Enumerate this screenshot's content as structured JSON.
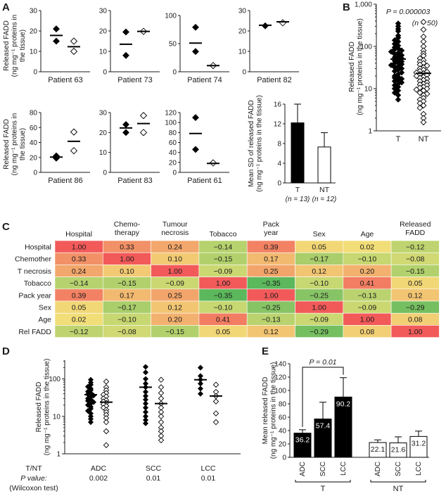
{
  "panels": {
    "A": {
      "letter": "A",
      "ylabel": [
        "Released FADD",
        "(ng mg⁻¹ proteins in",
        "the tissue)"
      ],
      "patients": [
        {
          "label": "Patient 63",
          "ymax": 30,
          "ticks": [
            0,
            10,
            20,
            30
          ],
          "T": [
            21,
            15
          ],
          "NT": [
            10,
            15
          ],
          "meanT": 17.8,
          "meanNT": 12.3
        },
        {
          "label": "Patient 73",
          "ymax": 30,
          "ticks": [
            0,
            10,
            20,
            30
          ],
          "T": [
            19.5,
            8
          ],
          "NT": [
            19.8
          ],
          "meanT": 13.5,
          "meanNT": 19.8
        },
        {
          "label": "Patient 74",
          "ymax": 100,
          "ticks": [
            0,
            50,
            100
          ],
          "T": [
            79,
            36
          ],
          "NT": [
            11
          ],
          "meanT": 51,
          "meanNT": 11
        },
        {
          "label": "Patient 82",
          "ymax": 30,
          "ticks": [
            0,
            10,
            20,
            30
          ],
          "T": [
            22.5
          ],
          "NT": [
            24
          ],
          "meanT": 22.8,
          "meanNT": 24.5
        },
        {
          "label": "Patient 86",
          "ymax": 80,
          "ticks": [
            0,
            20,
            40,
            60,
            80
          ],
          "T": [
            22,
            19
          ],
          "NT": [
            54,
            29
          ],
          "meanT": 20.5,
          "meanNT": 41.5
        },
        {
          "label": "Patient 83",
          "ymax": 30,
          "ticks": [
            0,
            10,
            20,
            30
          ],
          "T": [
            20,
            24
          ],
          "NT": [
            28.5,
            20
          ],
          "meanT": 22.3,
          "meanNT": 24.5
        },
        {
          "label": "Patient 61",
          "ymax": 120,
          "ticks": [
            0,
            20,
            40,
            60,
            80,
            100,
            120
          ],
          "T": [
            110,
            46
          ],
          "NT": [
            19
          ],
          "meanT": 78,
          "meanNT": 18
        }
      ],
      "sd_bar": {
        "ylabel": [
          "Mean SD of released FADD",
          "(ng mg⁻¹ proteins in the tissue)"
        ],
        "ymax": 16,
        "ticks": [
          0,
          4,
          8,
          12,
          16
        ],
        "bars": [
          {
            "label": "T",
            "n": "(n = 13)",
            "value": 12.2,
            "err": 3.8,
            "fill": "#000000"
          },
          {
            "label": "NT",
            "n": "(n = 12)",
            "value": 7.3,
            "err": 2.9,
            "fill": "#ffffff"
          }
        ]
      }
    },
    "B": {
      "letter": "B",
      "ylabel": [
        "Released FADD",
        "(ng mg⁻¹ proteins in the tissue)"
      ],
      "pvalue": "P = 0.000003",
      "n": "(n = 50)",
      "ticks": [
        "1",
        "10",
        "100",
        "1,000"
      ],
      "categories": [
        "T",
        "NT"
      ],
      "meanT": 50,
      "meanNT": 23,
      "T_values": [
        350,
        300,
        260,
        230,
        180,
        160,
        140,
        130,
        115,
        105,
        95,
        90,
        85,
        80,
        75,
        70,
        66,
        62,
        58,
        55,
        52,
        49,
        46,
        44,
        42,
        40,
        38,
        36,
        34,
        32,
        30,
        28,
        26,
        24,
        22,
        20,
        19,
        18,
        17,
        16,
        15,
        14,
        13,
        12,
        11,
        10,
        9,
        8,
        7,
        5.5
      ],
      "NT_values": [
        380,
        250,
        170,
        130,
        100,
        80,
        68,
        60,
        52,
        47,
        43,
        40,
        37,
        35,
        32,
        30,
        28,
        26,
        25,
        24,
        23,
        22,
        21,
        20,
        19,
        18,
        17,
        16,
        15,
        14,
        13,
        12.5,
        12,
        11,
        10.5,
        10,
        9.5,
        9,
        8,
        7.5,
        7,
        6,
        5.5,
        5,
        4.5,
        4,
        3.5,
        2.5,
        2,
        1.6
      ]
    },
    "C": {
      "letter": "C",
      "col_headers": [
        [
          "Hospital"
        ],
        [
          "Chemo-",
          "therapy"
        ],
        [
          "Tumour",
          "necrosis"
        ],
        [
          "Tobacco"
        ],
        [
          "Pack",
          "year"
        ],
        [
          "Sex"
        ],
        [
          "Age"
        ],
        [
          "Released",
          "FADD"
        ]
      ],
      "row_labels": [
        "Hospital",
        "Chemother",
        "T necrosis",
        "Tobacco",
        "Pack year",
        "Sex",
        "Age",
        "Rel FADD"
      ],
      "matrix": [
        [
          1.0,
          0.33,
          0.24,
          -0.14,
          0.39,
          0.05,
          0.02,
          -0.12
        ],
        [
          0.33,
          1.0,
          0.1,
          -0.15,
          0.17,
          -0.17,
          -0.1,
          -0.08
        ],
        [
          0.24,
          0.1,
          1.0,
          -0.09,
          0.25,
          0.12,
          0.2,
          -0.15
        ],
        [
          -0.14,
          -0.15,
          -0.09,
          1.0,
          -0.35,
          -0.1,
          0.41,
          0.05
        ],
        [
          0.39,
          0.17,
          0.25,
          -0.35,
          1.0,
          -0.25,
          -0.13,
          0.12
        ],
        [
          0.05,
          -0.17,
          0.12,
          -0.1,
          -0.25,
          1.0,
          -0.09,
          -0.29
        ],
        [
          0.02,
          -0.1,
          0.2,
          0.41,
          -0.13,
          -0.09,
          1.0,
          0.08
        ],
        [
          -0.12,
          -0.08,
          -0.15,
          0.05,
          0.12,
          -0.29,
          0.08,
          1.0
        ]
      ],
      "colors": {
        "neg": "#5cb85c",
        "mid": "#f2e37a",
        "pos": "#f25a5a"
      }
    },
    "D": {
      "letter": "D",
      "ylabel": [
        "Released FADD",
        "(ng mg⁻¹ proteins in the tissue)"
      ],
      "ticks": [
        "1",
        "10",
        "100"
      ],
      "row_label_tnt": "T/NT",
      "row_label_p": "P value:",
      "row_label_test": "(Wilcoxon test)",
      "groups": [
        {
          "label": "ADC",
          "p": "0.002",
          "meanT": 38,
          "meanNT": 24,
          "T_values": [
            95,
            80,
            70,
            62,
            55,
            50,
            46,
            42,
            39,
            36,
            33,
            30,
            28,
            26,
            24,
            22,
            20,
            18,
            16,
            14,
            12,
            10,
            8.5,
            7
          ],
          "NT_values": [
            85,
            60,
            50,
            42,
            38,
            34,
            30,
            27,
            25,
            23,
            21,
            19,
            17,
            15,
            13,
            11,
            9,
            7,
            4,
            1.7
          ]
        },
        {
          "label": "SCC",
          "p": "0.01",
          "meanT": 60,
          "meanNT": 22,
          "T_values": [
            210,
            150,
            100,
            75,
            60,
            45,
            35,
            28,
            22,
            17,
            13,
            10,
            8,
            6.5
          ],
          "NT_values": [
            95,
            60,
            42,
            30,
            22,
            17,
            13,
            10,
            7,
            5,
            4,
            3,
            2.3
          ]
        },
        {
          "label": "LCC",
          "p": "0.01",
          "meanT": 95,
          "meanNT": 35,
          "T_values": [
            200,
            120,
            95,
            75,
            55,
            40
          ],
          "NT_values": [
            70,
            45,
            35,
            25,
            12,
            7
          ]
        }
      ]
    },
    "E": {
      "letter": "E",
      "ylabel": [
        "Mean released FADD",
        "(ng mg⁻¹ proteins in the tissue)"
      ],
      "ymax": 140,
      "ticks": [
        0,
        20,
        40,
        60,
        80,
        100,
        120,
        140
      ],
      "pvalue": "P = 0.01",
      "group_labels": [
        "T",
        "NT"
      ],
      "bars": [
        {
          "group": "T",
          "label": "ADC",
          "value": 36.2,
          "text": "36.2",
          "err": 5,
          "fill": "#000000"
        },
        {
          "group": "T",
          "label": "SCC",
          "value": 57.4,
          "text": "57.4",
          "err": 25,
          "fill": "#000000"
        },
        {
          "group": "T",
          "label": "LCC",
          "value": 90.2,
          "text": "90.2",
          "err": 29,
          "fill": "#000000"
        },
        {
          "group": "NT",
          "label": "ADC",
          "value": 22.1,
          "text": "22.1",
          "err": 4,
          "fill": "#ffffff"
        },
        {
          "group": "NT",
          "label": "SCC",
          "value": 21.6,
          "text": "21.6",
          "err": 9,
          "fill": "#ffffff"
        },
        {
          "group": "NT",
          "label": "LCC",
          "value": 31.2,
          "text": "31.2",
          "err": 8,
          "fill": "#ffffff"
        }
      ]
    }
  },
  "chart_data": [
    {
      "panel": "A",
      "type": "scatter",
      "x": [
        "Patient 63",
        "Patient 73",
        "Patient 74",
        "Patient 82",
        "Patient 86",
        "Patient 83",
        "Patient 61"
      ],
      "ylabel": "Released FADD (ng mg⁻¹ proteins in the tissue)"
    },
    {
      "panel": "A-inset",
      "type": "bar",
      "categories": [
        "T",
        "NT"
      ],
      "values": [
        12.2,
        7.3
      ],
      "ylim": [
        0,
        16
      ]
    },
    {
      "panel": "B",
      "type": "scatter",
      "categories": [
        "T",
        "NT"
      ],
      "yscale": "log",
      "ylim": [
        1,
        1000
      ]
    },
    {
      "panel": "C",
      "type": "heatmap",
      "note": "correlation matrix"
    },
    {
      "panel": "D",
      "type": "scatter",
      "categories": [
        "ADC",
        "SCC",
        "LCC"
      ],
      "yscale": "log",
      "ylim": [
        1,
        300
      ]
    },
    {
      "panel": "E",
      "type": "bar",
      "categories": [
        "ADC",
        "SCC",
        "LCC"
      ],
      "series": [
        {
          "name": "T",
          "values": [
            36.2,
            57.4,
            90.2
          ]
        },
        {
          "name": "NT",
          "values": [
            22.1,
            21.6,
            31.2
          ]
        }
      ],
      "ylim": [
        0,
        140
      ]
    }
  ]
}
